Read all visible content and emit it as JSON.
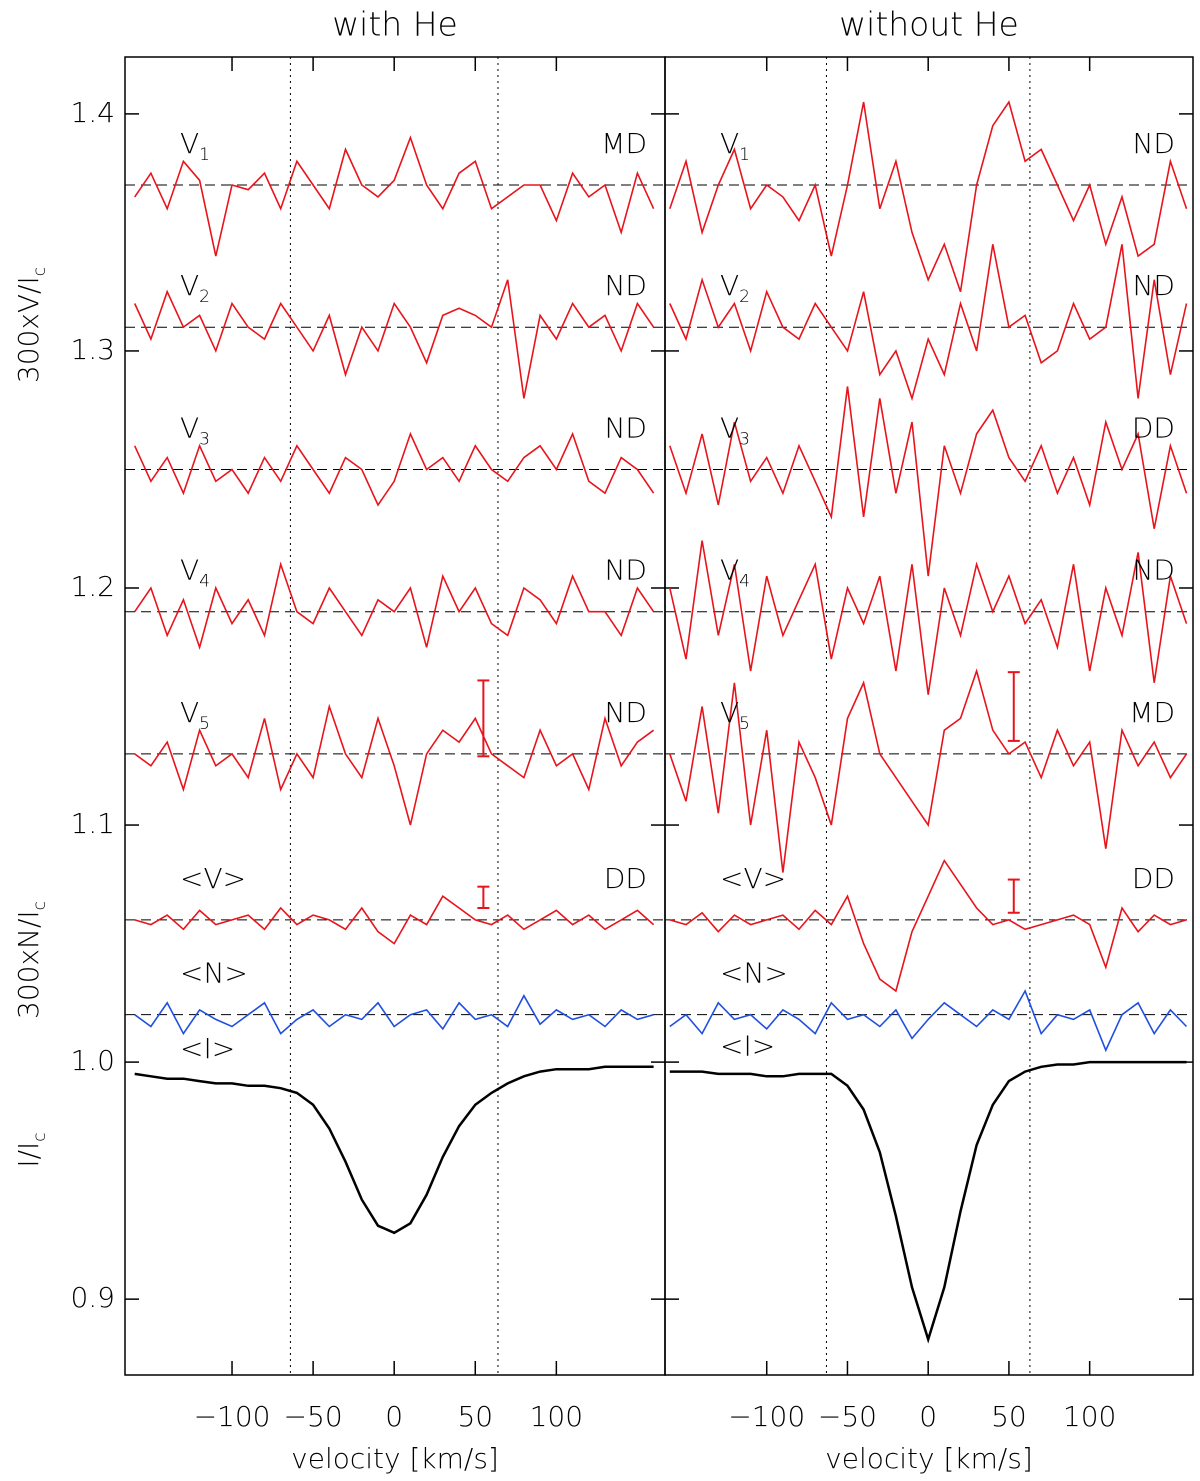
{
  "chart_data": {
    "type": "line",
    "ylim": [
      0.868,
      1.424
    ],
    "yticks": [
      0.9,
      {
        "value": 1,
        "label": "1.0"
      },
      1.1,
      1.2,
      1.3,
      1.4
    ],
    "ylabels": [
      {
        "text": "300xV/I",
        "sub": "c"
      },
      {
        "text": "300xN/I",
        "sub": "c"
      },
      {
        "text": "I/I",
        "sub": "c"
      }
    ],
    "panels": [
      {
        "title": "with He",
        "xlabel": "velocity [km/s]",
        "xlim": [
          -166,
          167
        ],
        "xticks": [
          {
            "value": -100,
            "label": "−100"
          },
          {
            "value": -50,
            "label": "−50"
          },
          0,
          50,
          100
        ],
        "vlines": [
          -64,
          64
        ],
        "x": [
          -160,
          -150,
          -140,
          -130,
          -120,
          -110,
          -100,
          -90,
          -80,
          -70,
          -60,
          -50,
          -40,
          -30,
          -20,
          -10,
          0,
          10,
          20,
          30,
          40,
          50,
          60,
          70,
          80,
          90,
          100,
          110,
          120,
          130,
          140,
          150,
          160
        ],
        "series": [
          {
            "name": "V",
            "sub": "1",
            "detection": "MD",
            "color": "#e8141c",
            "baseline": 1.37,
            "values": [
              1.365,
              1.375,
              1.36,
              1.38,
              1.372,
              1.34,
              1.37,
              1.368,
              1.375,
              1.36,
              1.38,
              1.37,
              1.36,
              1.385,
              1.37,
              1.365,
              1.372,
              1.39,
              1.37,
              1.36,
              1.375,
              1.38,
              1.36,
              1.365,
              1.37,
              1.37,
              1.355,
              1.375,
              1.365,
              1.37,
              1.35,
              1.375,
              1.36
            ]
          },
          {
            "name": "V",
            "sub": "2",
            "detection": "ND",
            "color": "#e8141c",
            "baseline": 1.31,
            "values": [
              1.32,
              1.305,
              1.325,
              1.31,
              1.315,
              1.3,
              1.32,
              1.31,
              1.305,
              1.32,
              1.31,
              1.3,
              1.315,
              1.29,
              1.31,
              1.3,
              1.32,
              1.31,
              1.295,
              1.315,
              1.318,
              1.315,
              1.31,
              1.33,
              1.28,
              1.315,
              1.305,
              1.32,
              1.31,
              1.315,
              1.3,
              1.32,
              1.31
            ]
          },
          {
            "name": "V",
            "sub": "3",
            "detection": "ND",
            "color": "#e8141c",
            "baseline": 1.25,
            "values": [
              1.26,
              1.245,
              1.255,
              1.24,
              1.26,
              1.245,
              1.25,
              1.24,
              1.255,
              1.245,
              1.26,
              1.25,
              1.24,
              1.255,
              1.25,
              1.235,
              1.245,
              1.265,
              1.25,
              1.255,
              1.245,
              1.26,
              1.25,
              1.245,
              1.255,
              1.26,
              1.25,
              1.265,
              1.245,
              1.24,
              1.255,
              1.25,
              1.24
            ]
          },
          {
            "name": "V",
            "sub": "4",
            "detection": "ND",
            "color": "#e8141c",
            "baseline": 1.19,
            "values": [
              1.19,
              1.2,
              1.18,
              1.195,
              1.175,
              1.2,
              1.185,
              1.195,
              1.18,
              1.21,
              1.19,
              1.185,
              1.2,
              1.19,
              1.18,
              1.195,
              1.19,
              1.2,
              1.175,
              1.205,
              1.19,
              1.2,
              1.185,
              1.18,
              1.2,
              1.195,
              1.185,
              1.205,
              1.19,
              1.19,
              1.18,
              1.2,
              1.19
            ]
          },
          {
            "name": "V",
            "sub": "5",
            "detection": "ND",
            "color": "#e8141c",
            "baseline": 1.13,
            "errorbar": {
              "x": 55,
              "y": 1.145,
              "err": 0.016
            },
            "values": [
              1.13,
              1.125,
              1.135,
              1.115,
              1.14,
              1.125,
              1.13,
              1.12,
              1.145,
              1.115,
              1.13,
              1.12,
              1.15,
              1.13,
              1.12,
              1.145,
              1.125,
              1.1,
              1.13,
              1.14,
              1.135,
              1.145,
              1.13,
              1.125,
              1.12,
              1.14,
              1.125,
              1.13,
              1.115,
              1.145,
              1.125,
              1.135,
              1.14
            ]
          },
          {
            "name": "<V>",
            "detection": "DD",
            "color": "#e8141c",
            "baseline": 1.06,
            "errorbar": {
              "x": 55,
              "y": 1.0695,
              "err": 0.0045
            },
            "values": [
              1.06,
              1.058,
              1.062,
              1.056,
              1.064,
              1.058,
              1.06,
              1.062,
              1.056,
              1.065,
              1.058,
              1.062,
              1.06,
              1.056,
              1.065,
              1.055,
              1.05,
              1.062,
              1.058,
              1.07,
              1.065,
              1.06,
              1.058,
              1.062,
              1.056,
              1.06,
              1.064,
              1.058,
              1.062,
              1.056,
              1.06,
              1.064,
              1.058
            ]
          },
          {
            "name": "<N>",
            "color": "#1f4fe0",
            "baseline": 1.02,
            "values": [
              1.02,
              1.015,
              1.025,
              1.012,
              1.022,
              1.018,
              1.015,
              1.02,
              1.025,
              1.012,
              1.018,
              1.022,
              1.015,
              1.02,
              1.018,
              1.025,
              1.015,
              1.02,
              1.022,
              1.014,
              1.025,
              1.018,
              1.02,
              1.015,
              1.028,
              1.016,
              1.022,
              1.018,
              1.02,
              1.015,
              1.022,
              1.018,
              1.02
            ]
          },
          {
            "name": "<I>",
            "color": "#000000",
            "values": [
              0.995,
              0.994,
              0.993,
              0.993,
              0.992,
              0.991,
              0.991,
              0.99,
              0.99,
              0.989,
              0.987,
              0.982,
              0.972,
              0.958,
              0.942,
              0.931,
              0.928,
              0.932,
              0.944,
              0.96,
              0.973,
              0.982,
              0.987,
              0.991,
              0.994,
              0.996,
              0.997,
              0.997,
              0.997,
              0.998,
              0.998,
              0.998,
              0.998
            ]
          }
        ]
      },
      {
        "title": "without He",
        "xlabel": "velocity [km/s]",
        "xlim": [
          -163,
          164
        ],
        "xticks": [
          {
            "value": -100,
            "label": "−100"
          },
          {
            "value": -50,
            "label": "−50"
          },
          0,
          50,
          100
        ],
        "vlines": [
          -63,
          63
        ],
        "x": [
          -160,
          -150,
          -140,
          -130,
          -120,
          -110,
          -100,
          -90,
          -80,
          -70,
          -60,
          -50,
          -40,
          -30,
          -20,
          -10,
          0,
          10,
          20,
          30,
          40,
          50,
          60,
          70,
          80,
          90,
          100,
          110,
          120,
          130,
          140,
          150,
          160
        ],
        "series": [
          {
            "name": "V",
            "sub": "1",
            "detection": "ND",
            "color": "#e8141c",
            "baseline": 1.37,
            "values": [
              1.36,
              1.38,
              1.35,
              1.37,
              1.385,
              1.36,
              1.37,
              1.365,
              1.355,
              1.37,
              1.34,
              1.37,
              1.405,
              1.36,
              1.38,
              1.35,
              1.33,
              1.345,
              1.325,
              1.37,
              1.395,
              1.405,
              1.38,
              1.385,
              1.37,
              1.355,
              1.37,
              1.345,
              1.365,
              1.34,
              1.345,
              1.38,
              1.36
            ]
          },
          {
            "name": "V",
            "sub": "2",
            "detection": "ND",
            "color": "#e8141c",
            "baseline": 1.31,
            "values": [
              1.32,
              1.305,
              1.33,
              1.31,
              1.32,
              1.3,
              1.325,
              1.31,
              1.305,
              1.32,
              1.31,
              1.3,
              1.325,
              1.29,
              1.3,
              1.28,
              1.305,
              1.29,
              1.32,
              1.3,
              1.345,
              1.31,
              1.315,
              1.295,
              1.3,
              1.32,
              1.305,
              1.31,
              1.345,
              1.28,
              1.33,
              1.29,
              1.32
            ]
          },
          {
            "name": "V",
            "sub": "3",
            "detection": "DD",
            "color": "#e8141c",
            "baseline": 1.25,
            "values": [
              1.26,
              1.24,
              1.265,
              1.235,
              1.27,
              1.245,
              1.255,
              1.24,
              1.26,
              1.245,
              1.23,
              1.285,
              1.23,
              1.28,
              1.24,
              1.27,
              1.205,
              1.26,
              1.24,
              1.265,
              1.275,
              1.255,
              1.245,
              1.26,
              1.24,
              1.255,
              1.235,
              1.27,
              1.25,
              1.265,
              1.225,
              1.26,
              1.24
            ]
          },
          {
            "name": "V",
            "sub": "4",
            "detection": "ND",
            "color": "#e8141c",
            "baseline": 1.19,
            "values": [
              1.2,
              1.17,
              1.22,
              1.18,
              1.21,
              1.165,
              1.205,
              1.18,
              1.195,
              1.21,
              1.17,
              1.2,
              1.185,
              1.205,
              1.165,
              1.21,
              1.155,
              1.2,
              1.18,
              1.21,
              1.19,
              1.205,
              1.185,
              1.195,
              1.175,
              1.21,
              1.165,
              1.2,
              1.18,
              1.215,
              1.16,
              1.205,
              1.185
            ]
          },
          {
            "name": "V",
            "sub": "5",
            "detection": "MD",
            "color": "#e8141c",
            "baseline": 1.13,
            "errorbar": {
              "x": 53,
              "y": 1.15,
              "err": 0.0145
            },
            "values": [
              1.13,
              1.11,
              1.15,
              1.105,
              1.16,
              1.1,
              1.14,
              1.08,
              1.135,
              1.12,
              1.1,
              1.145,
              1.16,
              1.13,
              1.12,
              1.11,
              1.1,
              1.14,
              1.145,
              1.165,
              1.14,
              1.13,
              1.135,
              1.12,
              1.14,
              1.125,
              1.135,
              1.09,
              1.14,
              1.125,
              1.135,
              1.12,
              1.13
            ]
          },
          {
            "name": "<V>",
            "detection": "DD",
            "color": "#e8141c",
            "baseline": 1.06,
            "errorbar": {
              "x": 53,
              "y": 1.07,
              "err": 0.007
            },
            "values": [
              1.06,
              1.058,
              1.063,
              1.055,
              1.062,
              1.058,
              1.06,
              1.062,
              1.056,
              1.064,
              1.058,
              1.07,
              1.05,
              1.035,
              1.03,
              1.055,
              1.07,
              1.085,
              1.075,
              1.065,
              1.058,
              1.06,
              1.056,
              1.058,
              1.06,
              1.062,
              1.058,
              1.04,
              1.065,
              1.055,
              1.062,
              1.058,
              1.06
            ]
          },
          {
            "name": "<N>",
            "color": "#1f4fe0",
            "baseline": 1.02,
            "values": [
              1.015,
              1.02,
              1.012,
              1.025,
              1.018,
              1.02,
              1.014,
              1.022,
              1.018,
              1.012,
              1.025,
              1.018,
              1.02,
              1.015,
              1.022,
              1.01,
              1.018,
              1.025,
              1.02,
              1.015,
              1.022,
              1.018,
              1.03,
              1.012,
              1.02,
              1.018,
              1.022,
              1.005,
              1.02,
              1.025,
              1.012,
              1.022,
              1.015
            ]
          },
          {
            "name": "<I>",
            "color": "#000000",
            "values": [
              0.996,
              0.996,
              0.996,
              0.995,
              0.995,
              0.995,
              0.994,
              0.994,
              0.995,
              0.995,
              0.995,
              0.99,
              0.98,
              0.962,
              0.935,
              0.905,
              0.883,
              0.905,
              0.937,
              0.965,
              0.982,
              0.992,
              0.996,
              0.998,
              0.999,
              0.999,
              1,
              1,
              1,
              1,
              1,
              1,
              1
            ]
          }
        ]
      }
    ]
  }
}
